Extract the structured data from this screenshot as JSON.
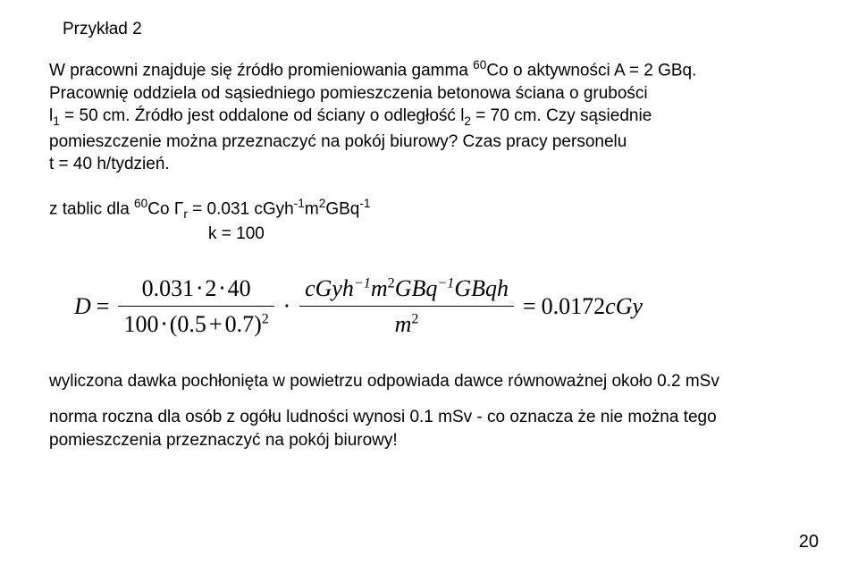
{
  "title": "Przykład 2",
  "paragraph1_l1": "W pracowni znajduje się źródło promieniowania gamma ",
  "paragraph1_co": "60",
  "paragraph1_l1b": "Co o aktywności A = 2 GBq.",
  "paragraph1_l2": "Pracownię oddziela od sąsiedniego pomieszczenia betonowa ściana o grubości",
  "paragraph1_l3a": "l",
  "paragraph1_l3sub": "1",
  "paragraph1_l3b": " = 50 cm. Źródło jest oddalone od ściany o odległość l",
  "paragraph1_l3sub2": "2",
  "paragraph1_l3c": " = 70 cm. Czy sąsiednie",
  "paragraph1_l4": "pomieszczenie można przeznaczyć na pokój biurowy? Czas pracy personelu",
  "paragraph1_l5": " t = 40 h/tydzień.",
  "tablic_l1a": "z tablic   dla ",
  "tablic_co": "60",
  "tablic_l1b": "Co  Γ",
  "tablic_sub_r": "r",
  "tablic_l1c": " = 0.031 cGyh",
  "tablic_e1": "-1",
  "tablic_l1d": "m",
  "tablic_e2": "2",
  "tablic_l1e": "GBq",
  "tablic_e3": "-1",
  "tablic_l2": "k = 100",
  "formula": {
    "D": "D",
    "num1": "0.031",
    "mul": "⋅",
    "num1b": "2",
    "num1c": "40",
    "den1a": "100",
    "den1b": "(0.5",
    "plus": "+",
    "den1c": "0.7)",
    "sq": "2",
    "cdot": "⋅",
    "num2_a": "cGyh",
    "num2_e1": "−1",
    "num2_b": "m",
    "num2_e2": "2",
    "num2_c": "GBq",
    "num2_e3": "−1",
    "num2_d": "GBqh",
    "den2_a": "m",
    "den2_e": "2",
    "eq": "=",
    "result": "0.0172",
    "result_unit": "cGy"
  },
  "foot1": "wyliczona dawka pochłonięta w powietrzu odpowiada dawce równoważnej około 0.2 mSv",
  "foot2": "norma roczna dla osób z ogółu ludności wynosi 0.1 mSv  -  co oznacza że nie można tego",
  "foot3": "pomieszczenia przeznaczyć na pokój biurowy!",
  "pagenum": "20"
}
